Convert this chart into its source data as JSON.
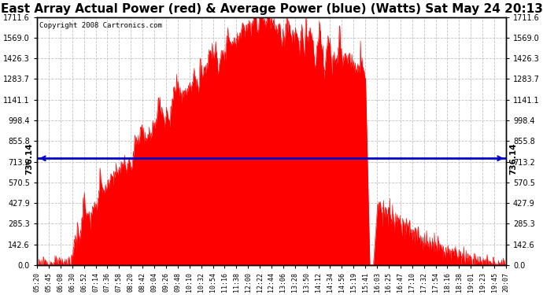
{
  "title": "East Array Actual Power (red) & Average Power (blue) (Watts) Sat May 24 20:13",
  "copyright": "Copyright 2008 Cartronics.com",
  "avg_power": 736.14,
  "y_max": 1711.6,
  "y_min": 0.0,
  "y_ticks": [
    0.0,
    142.6,
    285.3,
    427.9,
    570.5,
    713.2,
    855.8,
    998.4,
    1141.1,
    1283.7,
    1426.3,
    1569.0,
    1711.6
  ],
  "bg_color": "#ffffff",
  "grid_color": "#bbbbbb",
  "fill_color": "#ff0000",
  "line_color": "#0000cc",
  "title_fontsize": 11,
  "x_labels": [
    "05:20",
    "05:45",
    "06:08",
    "06:30",
    "06:52",
    "07:14",
    "07:36",
    "07:58",
    "08:20",
    "08:42",
    "09:04",
    "09:26",
    "09:48",
    "10:10",
    "10:32",
    "10:54",
    "11:16",
    "11:38",
    "12:00",
    "12:22",
    "12:44",
    "13:06",
    "13:28",
    "13:50",
    "14:12",
    "14:34",
    "14:56",
    "15:19",
    "15:41",
    "16:03",
    "16:25",
    "16:47",
    "17:10",
    "17:32",
    "17:54",
    "18:16",
    "18:38",
    "19:01",
    "19:23",
    "19:45",
    "20:07"
  ]
}
